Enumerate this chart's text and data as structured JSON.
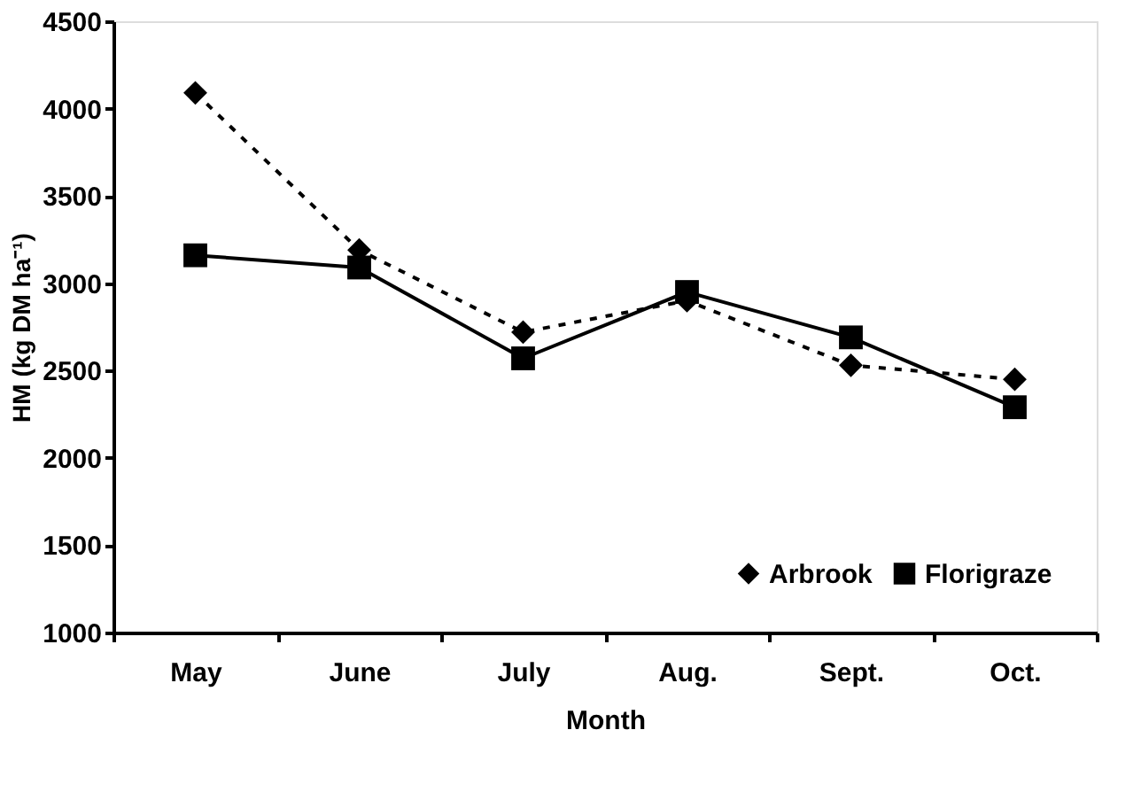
{
  "chart_data": {
    "type": "line",
    "xlabel": "Month",
    "ylabel": "HM (kg DM ha⁻¹)",
    "categories": [
      "May",
      "June",
      "July",
      "Aug.",
      "Sept.",
      "Oct."
    ],
    "series": [
      {
        "name": "Arbrook",
        "color": "#000000",
        "line_style": "dashed",
        "marker": "diamond",
        "values": [
          4090,
          3190,
          2720,
          2900,
          2530,
          2450
        ]
      },
      {
        "name": "Florigraze",
        "color": "#000000",
        "line_style": "solid",
        "marker": "square",
        "values": [
          3160,
          3090,
          2570,
          2950,
          2690,
          2290
        ]
      }
    ],
    "ylim": [
      1000,
      4500
    ],
    "yticks": [
      1000,
      1500,
      2000,
      2500,
      3000,
      3500,
      4000,
      4500
    ],
    "grid": false,
    "legend": "bottom right"
  }
}
